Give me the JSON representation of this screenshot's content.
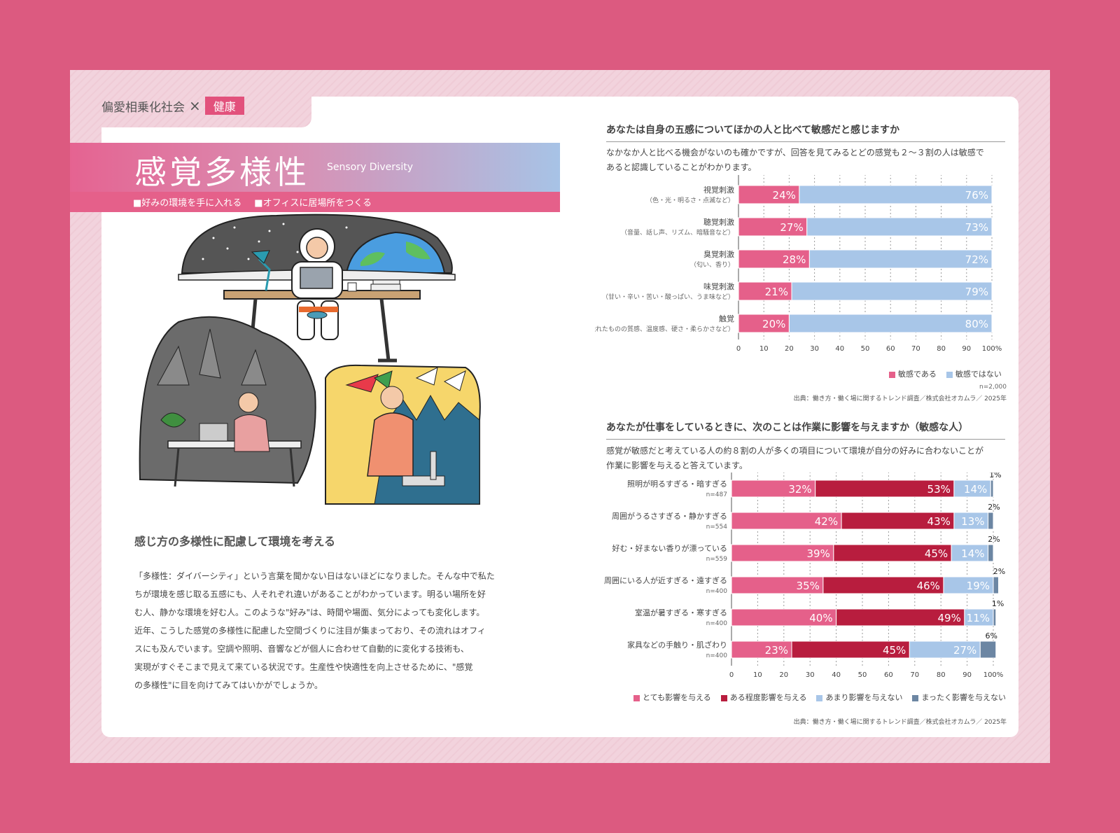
{
  "header": {
    "category": "偏愛相乗化社会",
    "cross": "×",
    "tag": "健康"
  },
  "title": {
    "main": "感覚多様性",
    "english": "Sensory Diversity",
    "bullets": [
      "■好みの環境を手に入れる",
      "■オフィスに居場所をつくる"
    ]
  },
  "article": {
    "heading": "感じ方の多様性に配慮して環境を考える",
    "lines": [
      "「多様性：ダイバーシティ」という言葉を聞かない日はないほどになりました。そんな中で私た",
      "ちが環境を感じ取る五感にも、人それぞれ違いがあることがわかっています。明るい場所を好",
      "む人、静かな環境を好む人。このような\"好み\"は、時間や場面、気分によっても変化します。",
      "近年、こうした感覚の多様性に配慮した空間づくりに注目が集まっており、その流れはオフィ",
      "スにも及んでいます。空調や照明、音響などが個人に合わせて自動的に変化する技術も、",
      "実現がすぐそこまで見えて来ている状況です。生産性や快適性を向上させるために、\"感覚",
      "の多様性\"に目を向けてみてはいかがでしょうか。"
    ]
  },
  "chart1_text": {
    "question": "あなたは自身の五感についてほかの人と比べて敏感だと感じますか",
    "description": "なかなか人と比べる機会がないのも確かですが、回答を見てみるとどの感覚も２～３割の人は敏感で\nあると認識していることがわかります。",
    "n": "n=2,000",
    "source": "出典：働き方・働く場に関するトレンド調査／株式会社オカムラ／ 2025年"
  },
  "chart2_text": {
    "question": "あなたが仕事をしているときに、次のことは作業に影響を与えますか（敏感な人）",
    "description": "感覚が敏感だと考えている人の約８割の人が多くの項目について環境が自分の好みに合わないことが\n作業に影響を与えると答えています。",
    "source": "出典：働き方・働く場に関するトレンド調査／株式会社オカムラ／ 2025年"
  },
  "colors": {
    "pink": "#e5608a",
    "crimson": "#b81d3e",
    "lightblue": "#a8c6e8",
    "slate": "#6c86a3"
  },
  "chart_data": [
    {
      "type": "bar",
      "orientation": "horizontal",
      "stacked": true,
      "categories": [
        "視覚刺激",
        "聴覚刺激",
        "臭覚刺激",
        "味覚刺激",
        "触覚"
      ],
      "category_notes": [
        "（色・光・明るさ・点滅など）",
        "（音量、話し声、リズム、暗騒音など）",
        "（匂い、香り）",
        "（甘い・辛い・苦い・酸っぱい、うま味など）",
        "（触れたものの質感、温度感、硬さ・柔らかさなど）"
      ],
      "series": [
        {
          "name": "敏感である",
          "values": [
            24,
            27,
            28,
            21,
            20
          ]
        },
        {
          "name": "敏感ではない",
          "values": [
            76,
            73,
            72,
            79,
            80
          ]
        }
      ],
      "xlim": [
        0,
        100
      ],
      "xticks": [
        "0",
        "10",
        "20",
        "30",
        "40",
        "50",
        "60",
        "70",
        "80",
        "90",
        "100%"
      ],
      "legend": "bottom-right"
    },
    {
      "type": "bar",
      "orientation": "horizontal",
      "stacked": true,
      "categories": [
        "照明が明るすぎる・暗すぎる",
        "周囲がうるさすぎる・静かすぎる",
        "好む・好まない香りが漂っている",
        "周囲にいる人が近すぎる・遠すぎる",
        "室温が暑すぎる・寒すぎる",
        "家具などの手触り・肌ざわり"
      ],
      "category_notes": [
        "n=487",
        "n=554",
        "n=559",
        "n=400",
        "n=400",
        "n=400"
      ],
      "series": [
        {
          "name": "とても影響を与える",
          "values": [
            32,
            42,
            39,
            35,
            40,
            23
          ]
        },
        {
          "name": "ある程度影響を与える",
          "values": [
            53,
            43,
            45,
            46,
            49,
            45
          ]
        },
        {
          "name": "あまり影響を与えない",
          "values": [
            14,
            13,
            14,
            19,
            11,
            27
          ]
        },
        {
          "name": "まったく影響を与えない",
          "values": [
            1,
            2,
            2,
            2,
            1,
            6
          ]
        }
      ],
      "xlim": [
        0,
        100
      ],
      "xticks": [
        "0",
        "10",
        "20",
        "30",
        "40",
        "50",
        "60",
        "70",
        "80",
        "90",
        "100%"
      ],
      "legend": "bottom-right"
    }
  ]
}
